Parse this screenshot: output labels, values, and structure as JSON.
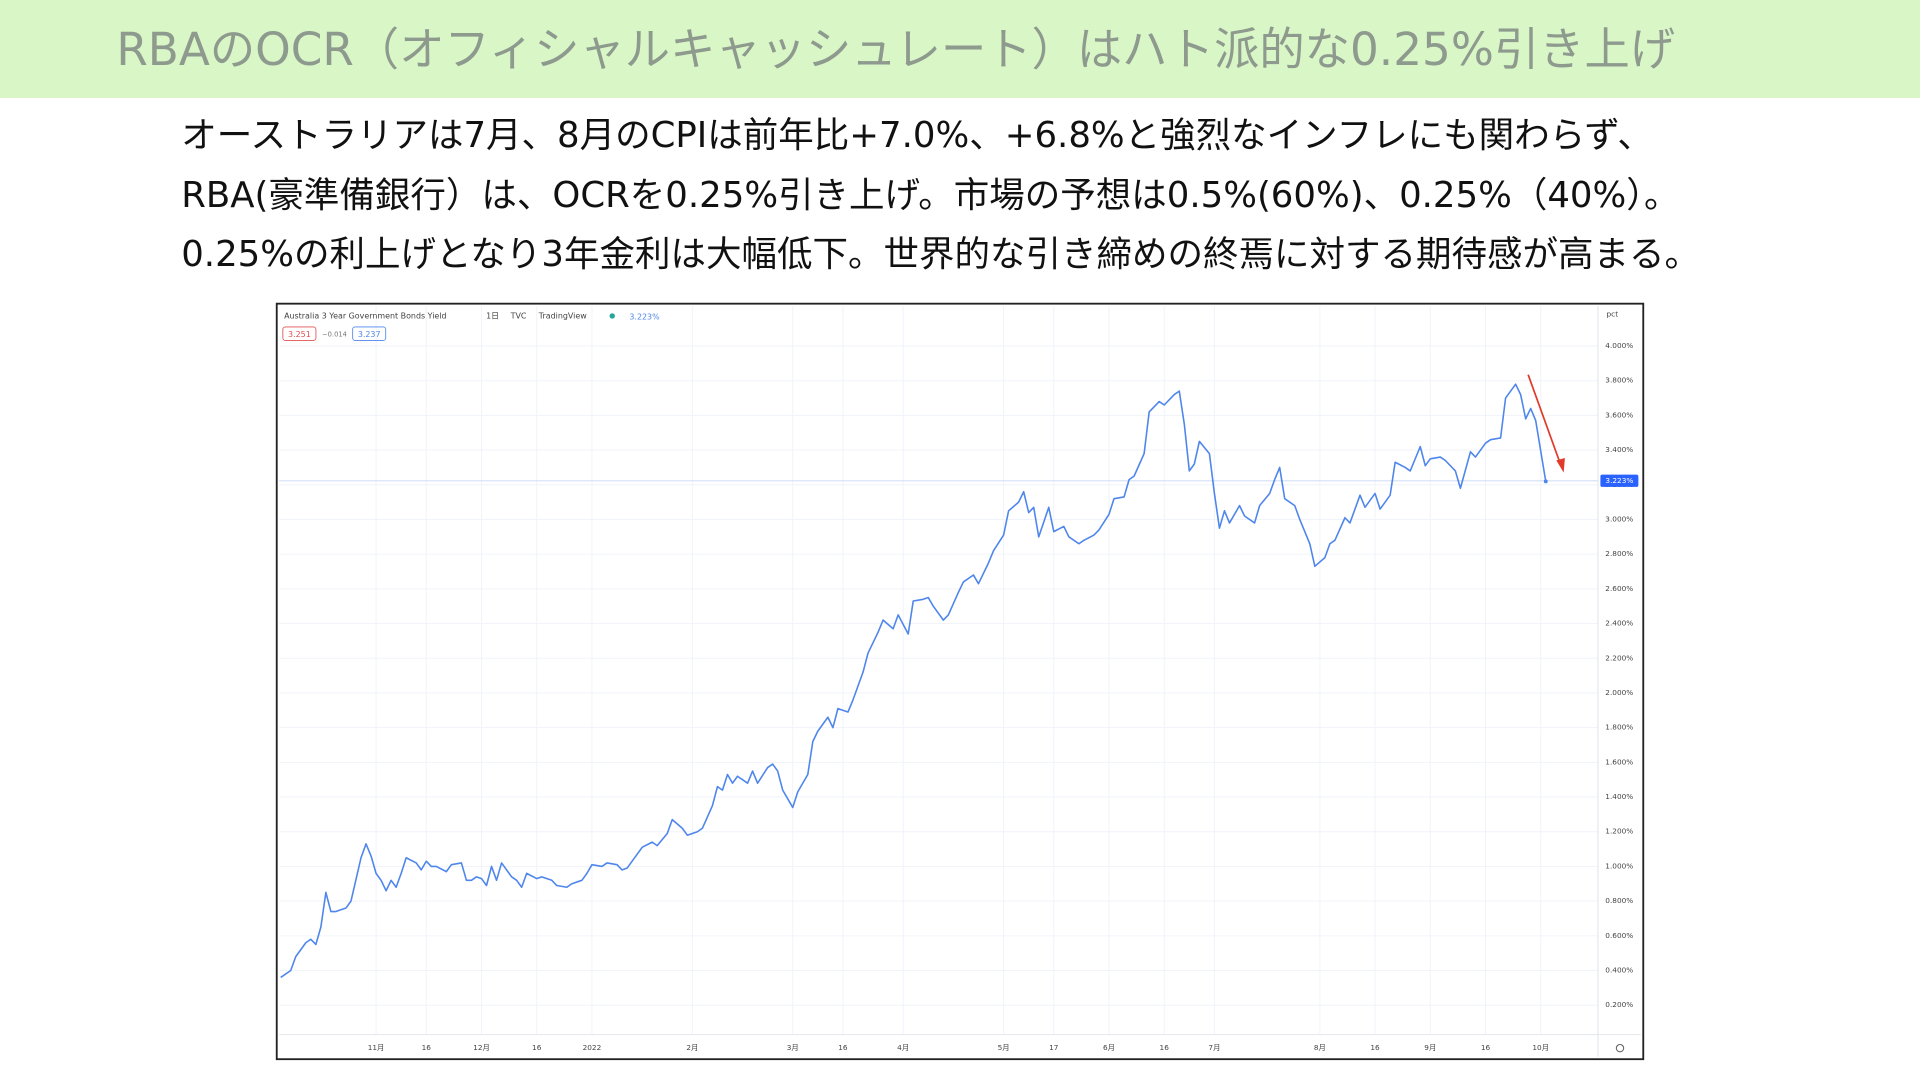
{
  "header": {
    "title": "RBAのOCR（オフィシャルキャッシュレート）はハト派的な0.25%引き上げ"
  },
  "body": {
    "lines": [
      "オーストラリアは7月、8月のCPIは前年比+7.0%、+6.8%と強烈なインフレにも関わらず、",
      "RBA(豪準備銀行）は、OCRを0.25%引き上げ。市場の予想は0.5%(60%)、0.25%（40%）。",
      "0.25%の利上げとなり3年金利は大幅低下。世界的な引き締めの終焉に対する期待感が高まる。"
    ]
  },
  "chart_data": {
    "type": "line",
    "title": "Australia 3 Year Government Bonds Yield",
    "interval": "1日",
    "source": "TVC",
    "provider": "TradingView",
    "legend_values": [
      "3.251",
      "−0.014",
      "3.237"
    ],
    "y_unit": "pct",
    "last": {
      "value": 3.223,
      "label": "3.223%"
    },
    "color": "#4f86ec",
    "grid": true,
    "xlim": [
      -19.3,
      243.4
    ],
    "ylim": [
      0.03,
      4.23
    ],
    "xticks": [
      {
        "value": 0,
        "label": "11月"
      },
      {
        "value": 10,
        "label": "16"
      },
      {
        "value": 21,
        "label": "12月"
      },
      {
        "value": 32,
        "label": "16"
      },
      {
        "value": 43,
        "label": "2022"
      },
      {
        "value": 63,
        "label": "2月"
      },
      {
        "value": 83,
        "label": "3月"
      },
      {
        "value": 93,
        "label": "16"
      },
      {
        "value": 105,
        "label": "4月"
      },
      {
        "value": 125,
        "label": "5月"
      },
      {
        "value": 135,
        "label": "17"
      },
      {
        "value": 146,
        "label": "6月"
      },
      {
        "value": 157,
        "label": "16"
      },
      {
        "value": 167,
        "label": "7月"
      },
      {
        "value": 188,
        "label": "8月"
      },
      {
        "value": 199,
        "label": "16"
      },
      {
        "value": 210,
        "label": "9月"
      },
      {
        "value": 221,
        "label": "16"
      },
      {
        "value": 232,
        "label": "10月"
      }
    ],
    "yticks": [
      {
        "value": 0.2,
        "label": "0.200%"
      },
      {
        "value": 0.4,
        "label": "0.400%"
      },
      {
        "value": 0.6,
        "label": "0.600%"
      },
      {
        "value": 0.8,
        "label": "0.800%"
      },
      {
        "value": 1.0,
        "label": "1.000%"
      },
      {
        "value": 1.2,
        "label": "1.200%"
      },
      {
        "value": 1.4,
        "label": "1.400%"
      },
      {
        "value": 1.6,
        "label": "1.600%"
      },
      {
        "value": 1.8,
        "label": "1.800%"
      },
      {
        "value": 2.0,
        "label": "2.000%"
      },
      {
        "value": 2.2,
        "label": "2.200%"
      },
      {
        "value": 2.4,
        "label": "2.400%"
      },
      {
        "value": 2.6,
        "label": "2.600%"
      },
      {
        "value": 2.8,
        "label": "2.800%"
      },
      {
        "value": 3.0,
        "label": "3.000%"
      },
      {
        "value": 3.2,
        "label": "3.200%"
      },
      {
        "value": 3.4,
        "label": "3.400%"
      },
      {
        "value": 3.6,
        "label": "3.600%"
      },
      {
        "value": 3.8,
        "label": "3.800%"
      },
      {
        "value": 4.0,
        "label": "4.000%"
      }
    ],
    "x": [
      -19,
      -17,
      -16,
      -14,
      -13,
      -12,
      -11,
      -10,
      -9,
      -8,
      -6,
      -5,
      -3,
      -2,
      -1,
      0,
      1,
      2,
      3,
      4,
      5,
      6,
      8,
      9,
      10,
      11,
      12,
      14,
      15,
      17,
      18,
      19,
      20,
      21,
      22,
      23,
      24,
      25,
      27,
      28,
      29,
      30,
      32,
      33,
      35,
      36,
      38,
      39,
      41,
      42,
      43,
      45,
      46,
      48,
      49,
      50,
      52,
      53,
      55,
      56,
      58,
      59,
      61,
      62,
      64,
      65,
      67,
      68,
      69,
      70,
      71,
      72,
      74,
      75,
      76,
      78,
      79,
      80,
      81,
      83,
      84,
      86,
      87,
      88,
      90,
      91,
      92,
      94,
      95,
      97,
      98,
      100,
      101,
      103,
      104,
      106,
      107,
      109,
      110,
      111,
      113,
      114,
      116,
      117,
      119,
      120,
      122,
      123,
      125,
      126,
      128,
      129,
      130,
      131,
      132,
      134,
      135,
      137,
      138,
      140,
      141,
      143,
      144,
      146,
      147,
      149,
      150,
      151,
      153,
      154,
      156,
      157,
      159,
      160,
      161,
      162,
      163,
      164,
      166,
      167,
      168,
      169,
      170,
      172,
      173,
      175,
      176,
      178,
      179,
      180,
      181,
      183,
      184,
      186,
      187,
      189,
      190,
      191,
      193,
      194,
      196,
      197,
      199,
      200,
      202,
      203,
      205,
      206,
      208,
      209,
      210,
      212,
      213,
      215,
      216,
      218,
      219,
      221,
      222,
      224,
      225,
      227,
      228,
      229,
      230,
      231,
      233
    ],
    "values": [
      0.36,
      0.4,
      0.48,
      0.56,
      0.58,
      0.55,
      0.65,
      0.85,
      0.74,
      0.74,
      0.76,
      0.8,
      1.05,
      1.13,
      1.06,
      0.96,
      0.92,
      0.86,
      0.92,
      0.88,
      0.96,
      1.05,
      1.02,
      0.98,
      1.03,
      1.0,
      1.0,
      0.97,
      1.01,
      1.02,
      0.92,
      0.92,
      0.94,
      0.93,
      0.89,
      1.0,
      0.92,
      1.02,
      0.94,
      0.92,
      0.88,
      0.96,
      0.93,
      0.94,
      0.92,
      0.89,
      0.88,
      0.9,
      0.92,
      0.96,
      1.01,
      1.0,
      1.02,
      1.01,
      0.98,
      0.99,
      1.07,
      1.11,
      1.14,
      1.12,
      1.19,
      1.27,
      1.22,
      1.18,
      1.2,
      1.22,
      1.35,
      1.46,
      1.44,
      1.53,
      1.48,
      1.52,
      1.48,
      1.55,
      1.48,
      1.57,
      1.59,
      1.55,
      1.44,
      1.34,
      1.43,
      1.53,
      1.72,
      1.78,
      1.86,
      1.8,
      1.91,
      1.89,
      1.96,
      2.12,
      2.23,
      2.35,
      2.42,
      2.37,
      2.45,
      2.34,
      2.53,
      2.54,
      2.55,
      2.5,
      2.42,
      2.45,
      2.58,
      2.64,
      2.68,
      2.63,
      2.75,
      2.82,
      2.91,
      3.05,
      3.1,
      3.16,
      3.04,
      3.07,
      2.9,
      3.07,
      2.93,
      2.96,
      2.9,
      2.86,
      2.88,
      2.91,
      2.94,
      3.03,
      3.12,
      3.13,
      3.23,
      3.25,
      3.38,
      3.62,
      3.68,
      3.66,
      3.72,
      3.74,
      3.55,
      3.28,
      3.32,
      3.45,
      3.38,
      3.15,
      2.95,
      3.05,
      2.98,
      3.08,
      3.02,
      2.98,
      3.08,
      3.15,
      3.23,
      3.3,
      3.12,
      3.08,
      3.0,
      2.86,
      2.73,
      2.78,
      2.86,
      2.88,
      3.01,
      2.98,
      3.14,
      3.07,
      3.15,
      3.06,
      3.14,
      3.33,
      3.3,
      3.28,
      3.42,
      3.31,
      3.35,
      3.36,
      3.34,
      3.28,
      3.18,
      3.39,
      3.36,
      3.44,
      3.46,
      3.47,
      3.7,
      3.78,
      3.72,
      3.58,
      3.64,
      3.57,
      3.22
    ]
  }
}
